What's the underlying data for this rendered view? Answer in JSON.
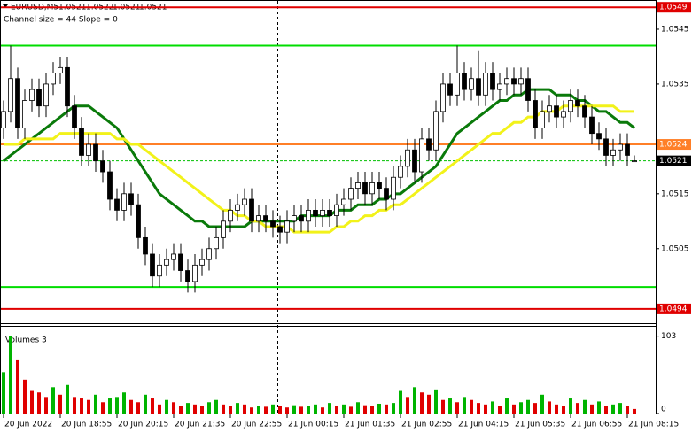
{
  "chart_data": [
    {
      "type": "candlestick",
      "symbol": "EURUSD,M5",
      "channel_label": "Channel size = 44 Slope = 0",
      "categories": [
        "20 Jun 2022",
        null,
        null,
        null,
        null,
        null,
        null,
        null,
        "20 Jun 18:55",
        null,
        null,
        null,
        null,
        null,
        null,
        null,
        "20 Jun 20:15",
        null,
        null,
        null,
        null,
        null,
        null,
        null,
        "20 Jun 21:35",
        null,
        null,
        null,
        null,
        null,
        null,
        null,
        "20 Jun 22:55",
        null,
        null,
        null,
        null,
        null,
        null,
        null,
        "21 Jun 00:15",
        null,
        null,
        null,
        null,
        null,
        null,
        null,
        "21 Jun 01:35",
        null,
        null,
        null,
        null,
        null,
        null,
        null,
        "21 Jun 02:55",
        null,
        null,
        null,
        null,
        null,
        null,
        null,
        "21 Jun 04:15",
        null,
        null,
        null,
        null,
        null,
        null,
        null,
        "21 Jun 05:35",
        null,
        null,
        null,
        null,
        null,
        null,
        null,
        "21 Jun 06:55",
        null,
        null,
        null,
        null,
        null,
        null,
        null,
        "21 Jun 08:15",
        null
      ],
      "open": [
        1.0527,
        1.053,
        1.0536,
        1.0527,
        1.0532,
        1.0534,
        1.0531,
        1.0535,
        1.0537,
        1.0538,
        1.0531,
        1.0527,
        1.0522,
        1.0524,
        1.0521,
        1.0519,
        1.0514,
        1.0512,
        1.0515,
        1.0513,
        1.0507,
        1.0504,
        1.05,
        1.0502,
        1.0503,
        1.0504,
        1.0501,
        1.0499,
        1.0502,
        1.0503,
        1.0505,
        1.0507,
        1.051,
        1.0512,
        1.0513,
        1.0514,
        1.051,
        1.0511,
        1.051,
        1.0509,
        1.0508,
        1.051,
        1.0511,
        1.051,
        1.0512,
        1.0511,
        1.0512,
        1.0511,
        1.0513,
        1.0514,
        1.0516,
        1.0517,
        1.0515,
        1.0517,
        1.0516,
        1.0514,
        1.0518,
        1.052,
        1.0523,
        1.0519,
        1.0525,
        1.0523,
        1.053,
        1.0535,
        1.0533,
        1.0537,
        1.0534,
        1.0536,
        1.0533,
        1.0537,
        1.0534,
        1.0535,
        1.0536,
        1.0535,
        1.0536,
        1.0532,
        1.0527,
        1.053,
        1.0531,
        1.0529,
        1.053,
        1.0532,
        1.0531,
        1.0529,
        1.0526,
        1.0525,
        1.0522,
        1.0523,
        1.0524,
        1.0521
      ],
      "high": [
        1.0532,
        1.0542,
        1.0538,
        1.0534,
        1.0536,
        1.0536,
        1.0537,
        1.0539,
        1.054,
        1.054,
        1.0533,
        1.0529,
        1.0526,
        1.0526,
        1.0523,
        1.0521,
        1.0516,
        1.0517,
        1.0517,
        1.0515,
        1.0509,
        1.0506,
        1.0504,
        1.0505,
        1.0506,
        1.0506,
        1.0503,
        1.0504,
        1.0505,
        1.0507,
        1.0509,
        1.0512,
        1.0514,
        1.0515,
        1.0516,
        1.0516,
        1.0513,
        1.0513,
        1.0512,
        1.0511,
        1.0512,
        1.0513,
        1.0513,
        1.0514,
        1.0514,
        1.0514,
        1.0514,
        1.0515,
        1.0516,
        1.0518,
        1.0519,
        1.0519,
        1.0519,
        1.0519,
        1.0518,
        1.052,
        1.0522,
        1.0525,
        1.0525,
        1.0527,
        1.0527,
        1.0532,
        1.0537,
        1.0537,
        1.0542,
        1.0539,
        1.0538,
        1.0541,
        1.0539,
        1.0539,
        1.0537,
        1.0538,
        1.0538,
        1.0538,
        1.0538,
        1.0534,
        1.0532,
        1.0533,
        1.0533,
        1.0532,
        1.0534,
        1.0534,
        1.0533,
        1.0531,
        1.0528,
        1.0527,
        1.0525,
        1.0526,
        1.0526,
        1.0522
      ],
      "low": [
        1.0525,
        1.0528,
        1.0525,
        1.0525,
        1.053,
        1.0529,
        1.0529,
        1.0533,
        1.0535,
        1.0529,
        1.0525,
        1.052,
        1.052,
        1.0519,
        1.0517,
        1.0512,
        1.051,
        1.051,
        1.0511,
        1.0505,
        1.0502,
        1.0498,
        1.0498,
        1.05,
        1.0501,
        1.0499,
        1.0497,
        1.0497,
        1.05,
        1.0501,
        1.0503,
        1.0505,
        1.0508,
        1.051,
        1.0511,
        1.0508,
        1.0508,
        1.0508,
        1.0507,
        1.0506,
        1.0506,
        1.0508,
        1.0508,
        1.0508,
        1.0509,
        1.0509,
        1.0509,
        1.0509,
        1.0511,
        1.0512,
        1.0514,
        1.0513,
        1.0513,
        1.0514,
        1.0512,
        1.0512,
        1.0516,
        1.0518,
        1.0517,
        1.0517,
        1.0521,
        1.0521,
        1.0528,
        1.0531,
        1.0531,
        1.0532,
        1.0532,
        1.0531,
        1.0531,
        1.0532,
        1.0532,
        1.0533,
        1.0533,
        1.0533,
        1.053,
        1.0525,
        1.0525,
        1.0528,
        1.0527,
        1.0527,
        1.0528,
        1.0529,
        1.0527,
        1.0524,
        1.0523,
        1.052,
        1.052,
        1.0521,
        1.052,
        1.0521
      ],
      "close": [
        1.053,
        1.0536,
        1.0527,
        1.0532,
        1.0534,
        1.0531,
        1.0535,
        1.0537,
        1.0538,
        1.0531,
        1.0527,
        1.0522,
        1.0524,
        1.0521,
        1.0519,
        1.0514,
        1.0512,
        1.0515,
        1.0513,
        1.0507,
        1.0504,
        1.05,
        1.0502,
        1.0503,
        1.0504,
        1.0501,
        1.0499,
        1.0502,
        1.0503,
        1.0505,
        1.0507,
        1.051,
        1.0512,
        1.0513,
        1.0514,
        1.051,
        1.0511,
        1.051,
        1.0509,
        1.0508,
        1.051,
        1.0511,
        1.051,
        1.0512,
        1.0511,
        1.0512,
        1.0511,
        1.0513,
        1.0514,
        1.0516,
        1.0517,
        1.0515,
        1.0517,
        1.0516,
        1.0514,
        1.0518,
        1.052,
        1.0523,
        1.0519,
        1.0525,
        1.0523,
        1.053,
        1.0535,
        1.0533,
        1.0537,
        1.0534,
        1.0536,
        1.0533,
        1.0537,
        1.0534,
        1.0535,
        1.0536,
        1.0535,
        1.0536,
        1.0532,
        1.0527,
        1.053,
        1.0531,
        1.0529,
        1.053,
        1.0532,
        1.0531,
        1.0529,
        1.0526,
        1.0525,
        1.0522,
        1.0523,
        1.0524,
        1.0522,
        1.0521
      ],
      "series": [
        {
          "color": "#0a7a0a",
          "values": [
            1.0521,
            1.0522,
            1.0523,
            1.0524,
            1.0525,
            1.0526,
            1.0527,
            1.0528,
            1.0529,
            1.053,
            1.0531,
            1.0531,
            1.0531,
            1.053,
            1.0529,
            1.0528,
            1.0527,
            1.0525,
            1.0523,
            1.0521,
            1.0519,
            1.0517,
            1.0515,
            1.0514,
            1.0513,
            1.0512,
            1.0511,
            1.051,
            1.051,
            1.0509,
            1.0509,
            1.0509,
            1.0509,
            1.0509,
            1.0509,
            1.051,
            1.051,
            1.051,
            1.051,
            1.051,
            1.051,
            1.051,
            1.0511,
            1.0511,
            1.0511,
            1.0511,
            1.0511,
            1.0512,
            1.0512,
            1.0512,
            1.0513,
            1.0513,
            1.0513,
            1.0514,
            1.0514,
            1.0515,
            1.0515,
            1.0516,
            1.0517,
            1.0518,
            1.0519,
            1.052,
            1.0522,
            1.0524,
            1.0526,
            1.0527,
            1.0528,
            1.0529,
            1.053,
            1.0531,
            1.0532,
            1.0532,
            1.0533,
            1.0533,
            1.0534,
            1.0534,
            1.0534,
            1.0534,
            1.0533,
            1.0533,
            1.0533,
            1.0532,
            1.0532,
            1.0531,
            1.053,
            1.053,
            1.0529,
            1.0528,
            1.0528,
            1.0527
          ]
        },
        {
          "color": "#f2f21a",
          "values": [
            1.0524,
            1.0524,
            1.0524,
            1.0525,
            1.0525,
            1.0525,
            1.0525,
            1.0525,
            1.0526,
            1.0526,
            1.0526,
            1.0526,
            1.0526,
            1.0526,
            1.0526,
            1.0526,
            1.0525,
            1.0525,
            1.0524,
            1.0524,
            1.0523,
            1.0522,
            1.0521,
            1.052,
            1.0519,
            1.0518,
            1.0517,
            1.0516,
            1.0515,
            1.0514,
            1.0513,
            1.0512,
            1.0512,
            1.0511,
            1.0511,
            1.051,
            1.051,
            1.0509,
            1.0509,
            1.0509,
            1.0509,
            1.0508,
            1.0508,
            1.0508,
            1.0508,
            1.0508,
            1.0508,
            1.0509,
            1.0509,
            1.051,
            1.051,
            1.0511,
            1.0511,
            1.0512,
            1.0512,
            1.0513,
            1.0513,
            1.0514,
            1.0515,
            1.0516,
            1.0517,
            1.0518,
            1.0519,
            1.052,
            1.0521,
            1.0522,
            1.0523,
            1.0524,
            1.0525,
            1.0526,
            1.0526,
            1.0527,
            1.0528,
            1.0528,
            1.0529,
            1.0529,
            1.053,
            1.053,
            1.053,
            1.0531,
            1.0531,
            1.0531,
            1.0531,
            1.0531,
            1.0531,
            1.0531,
            1.0531,
            1.053,
            1.053,
            1.053
          ]
        }
      ],
      "ylim": [
        1.04935,
        1.055
      ],
      "yticks": [
        1.0545,
        1.0535,
        1.0515,
        1.0505
      ],
      "support_lines": [
        1.0542,
        1.0498
      ],
      "support_color": "#00dd00",
      "price_lines": [
        {
          "value": 1.0549,
          "color": "#e00000"
        },
        {
          "value": 1.0524,
          "color": "#ff7f27"
        },
        {
          "value": 1.0494,
          "color": "#e00000"
        }
      ],
      "last_price": {
        "value": 1.0521,
        "color": "#00c000"
      }
    },
    {
      "type": "bar",
      "title": "Volumes 3",
      "values": [
        55,
        103,
        72,
        45,
        30,
        28,
        22,
        35,
        25,
        38,
        22,
        20,
        18,
        25,
        15,
        20,
        22,
        28,
        18,
        15,
        25,
        20,
        12,
        18,
        15,
        10,
        14,
        12,
        10,
        15,
        18,
        12,
        10,
        14,
        12,
        8,
        10,
        9,
        12,
        10,
        8,
        11,
        9,
        10,
        12,
        8,
        14,
        10,
        12,
        9,
        15,
        11,
        10,
        13,
        12,
        14,
        30,
        22,
        35,
        28,
        25,
        32,
        18,
        20,
        15,
        22,
        18,
        14,
        12,
        16,
        10,
        20,
        12,
        15,
        18,
        14,
        25,
        16,
        12,
        10,
        20,
        14,
        18,
        12,
        16,
        10,
        12,
        14,
        10,
        6
      ],
      "up_color": "#00b400",
      "down_color": "#e00000",
      "ylim": [
        0,
        112
      ],
      "yticks": [
        0,
        103
      ]
    }
  ]
}
